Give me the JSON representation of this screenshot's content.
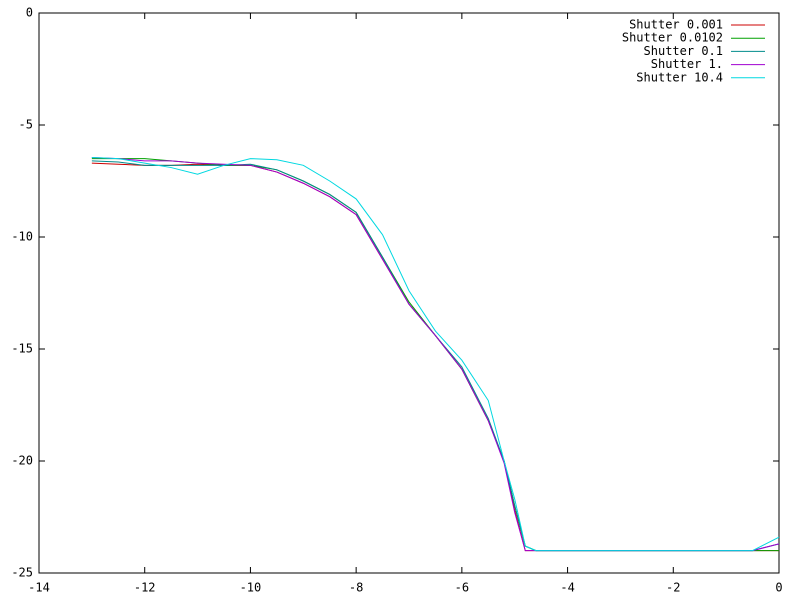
{
  "chart_data": {
    "type": "line",
    "x": [
      -13,
      -12.5,
      -12,
      -11.5,
      -11,
      -10.5,
      -10,
      -9.5,
      -9,
      -8.5,
      -8,
      -7.5,
      -7,
      -6.5,
      -6,
      -5.5,
      -5.2,
      -5,
      -4.8,
      -4.6,
      -2,
      -0.5,
      0
    ],
    "series": [
      {
        "name": "Shutter 0.001",
        "color": "#cc0000",
        "values": [
          -6.7,
          -6.75,
          -6.8,
          -6.8,
          -6.75,
          -6.8,
          -6.8,
          -7.1,
          -7.6,
          -8.2,
          -9.0,
          -11.0,
          -13.0,
          -14.4,
          -15.9,
          -18.2,
          -20.0,
          -22.2,
          -24,
          -24,
          -24,
          -24,
          -24
        ]
      },
      {
        "name": "Shutter 0.0102",
        "color": "#00a000",
        "values": [
          -6.5,
          -6.5,
          -6.5,
          -6.6,
          -6.7,
          -6.8,
          -6.8,
          -7.0,
          -7.5,
          -8.1,
          -8.9,
          -10.9,
          -12.9,
          -14.4,
          -15.9,
          -18.2,
          -20.0,
          -22.0,
          -23.8,
          -24,
          -24,
          -24,
          -24
        ]
      },
      {
        "name": "Shutter 0.1",
        "color": "#008b8b",
        "values": [
          -6.6,
          -6.65,
          -6.8,
          -6.8,
          -6.8,
          -6.8,
          -6.75,
          -7.0,
          -7.5,
          -8.1,
          -8.9,
          -10.9,
          -13.0,
          -14.4,
          -15.8,
          -18.1,
          -20.0,
          -22.0,
          -23.8,
          -24,
          -24,
          -24,
          -23.7
        ]
      },
      {
        "name": "Shutter 1.",
        "color": "#a000d0",
        "values": [
          -6.45,
          -6.5,
          -6.6,
          -6.6,
          -6.7,
          -6.75,
          -6.8,
          -7.1,
          -7.6,
          -8.2,
          -9.0,
          -11.0,
          -13.0,
          -14.4,
          -15.9,
          -18.2,
          -20.1,
          -22.3,
          -24,
          -24,
          -24,
          -24,
          -23.7
        ]
      },
      {
        "name": "Shutter 10.4",
        "color": "#00d8e0",
        "values": [
          -6.45,
          -6.5,
          -6.7,
          -6.9,
          -7.2,
          -6.8,
          -6.5,
          -6.55,
          -6.8,
          -7.5,
          -8.3,
          -9.9,
          -12.4,
          -14.2,
          -15.5,
          -17.3,
          -20.0,
          -21.7,
          -23.8,
          -24,
          -24,
          -24,
          -23.4
        ]
      }
    ],
    "xlim": [
      -14,
      0
    ],
    "xticks": [
      -14,
      -12,
      -10,
      -8,
      -6,
      -4,
      -2,
      0
    ],
    "ylim": [
      -25,
      0
    ],
    "yticks": [
      0,
      -5,
      -10,
      -15,
      -20,
      -25
    ],
    "legend": "top-right"
  }
}
